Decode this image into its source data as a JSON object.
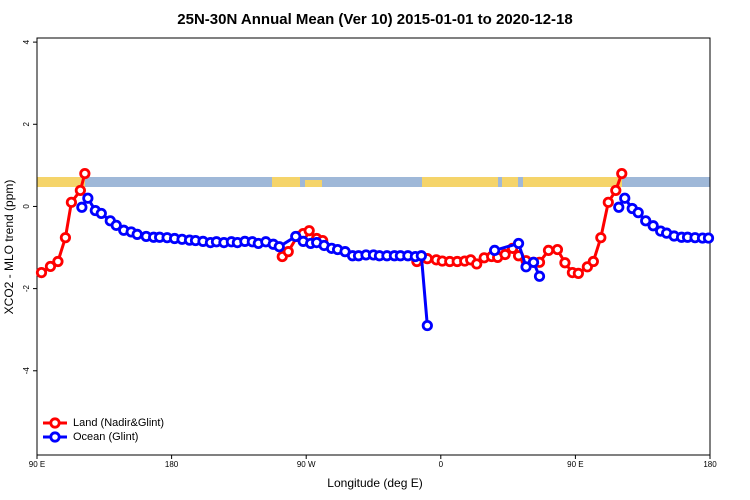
{
  "chart_data": {
    "type": "line",
    "title": "25N-30N Annual Mean (Ver 10)   2015-01-01 to 2020-12-18",
    "x_label": "Longitude (deg E)",
    "y_label": "XCO2 - MLO trend (ppm)",
    "xlim": [
      90,
      540
    ],
    "ylim": [
      -6.05,
      4.1
    ],
    "xticks": [
      {
        "value": 90,
        "label": "90 E"
      },
      {
        "value": 180,
        "label": "180"
      },
      {
        "value": 270,
        "label": "90 W"
      },
      {
        "value": 360,
        "label": "0"
      },
      {
        "value": 450,
        "label": "90 E"
      },
      {
        "value": 540,
        "label": "180"
      }
    ],
    "yticks": [
      4,
      2,
      0,
      -2,
      -4
    ],
    "legend": "bottom-left",
    "series": [
      {
        "name": "Land (Nadir&Glint)",
        "color": "#ff0000",
        "x": [
          93,
          99,
          104,
          109,
          113,
          119,
          122,
          200,
          254,
          258,
          264,
          268,
          272,
          277,
          281,
          320,
          344,
          351,
          357,
          361,
          366,
          371,
          376,
          380,
          384,
          389,
          394,
          398,
          403,
          408,
          412,
          417,
          422,
          426,
          432,
          438,
          443,
          448,
          452,
          458,
          462,
          467,
          472,
          477,
          481
        ],
        "values": [
          -1.61,
          -1.46,
          -1.34,
          -0.76,
          0.1,
          0.39,
          0.8,
          null,
          -1.22,
          -1.1,
          -0.73,
          -0.66,
          -0.59,
          -0.78,
          -0.83,
          null,
          -1.34,
          -1.27,
          -1.3,
          -1.33,
          -1.34,
          -1.34,
          -1.33,
          -1.3,
          -1.4,
          -1.25,
          -1.22,
          -1.24,
          -1.17,
          -1.02,
          -1.2,
          -1.32,
          -1.36,
          -1.36,
          -1.07,
          -1.05,
          -1.37,
          -1.61,
          -1.63,
          -1.47,
          -1.34,
          -0.76,
          0.1,
          0.39,
          0.8
        ]
      },
      {
        "name": "Ocean (Glint)",
        "color": "#0000ff",
        "x": [
          120,
          124,
          129,
          133,
          139,
          143,
          148,
          153,
          157,
          163,
          168,
          172,
          177,
          182,
          187,
          192,
          196,
          201,
          206,
          210,
          215,
          220,
          224,
          229,
          234,
          238,
          243,
          248,
          252,
          263,
          268,
          273,
          277,
          282,
          287,
          291,
          296,
          301,
          305,
          310,
          315,
          319,
          324,
          329,
          333,
          338,
          343,
          347,
          351,
          370,
          396,
          412,
          417,
          422,
          426,
          450,
          479,
          483,
          488,
          492,
          497,
          502,
          507,
          511,
          516,
          521,
          525,
          530,
          535,
          539
        ],
        "values": [
          -0.02,
          0.2,
          -0.1,
          -0.17,
          -0.35,
          -0.46,
          -0.58,
          -0.62,
          -0.68,
          -0.73,
          -0.75,
          -0.75,
          -0.76,
          -0.78,
          -0.8,
          -0.82,
          -0.83,
          -0.85,
          -0.88,
          -0.86,
          -0.88,
          -0.86,
          -0.88,
          -0.85,
          -0.86,
          -0.9,
          -0.86,
          -0.92,
          -0.98,
          -0.73,
          -0.85,
          -0.9,
          -0.88,
          -0.95,
          -1.02,
          -1.05,
          -1.1,
          -1.2,
          -1.2,
          -1.18,
          -1.18,
          -1.2,
          -1.2,
          -1.2,
          -1.2,
          -1.2,
          -1.22,
          -1.2,
          -2.9,
          null,
          -1.07,
          -0.9,
          -1.47,
          -1.36,
          -1.7,
          null,
          -0.02,
          0.2,
          -0.05,
          -0.15,
          -0.35,
          -0.47,
          -0.6,
          -0.65,
          -0.72,
          -0.75,
          -0.75,
          -0.76,
          -0.77,
          -0.77
        ]
      }
    ]
  }
}
